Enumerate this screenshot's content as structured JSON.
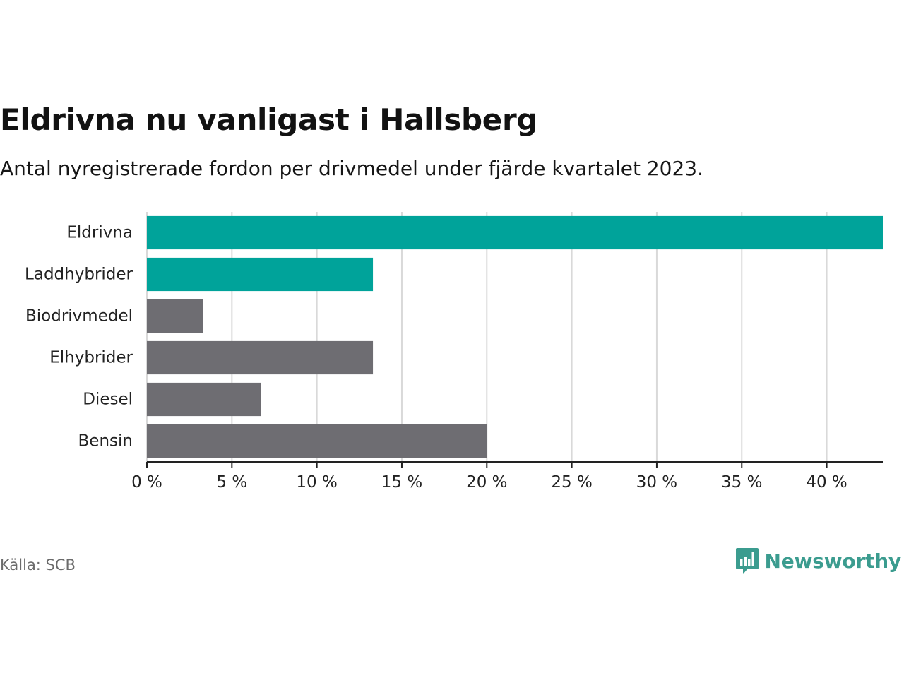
{
  "header": {
    "title": "Eldrivna nu vanligast i Hallsberg",
    "subtitle": "Antal nyregistrerade fordon per drivmedel under fjärde kvartalet 2023."
  },
  "footer": {
    "source": "Källa: SCB",
    "brand": "Newsworthy",
    "brand_icon": "bar-chart-speech-bubble-icon"
  },
  "colors": {
    "highlight": "#00a39a",
    "default": "#6e6d72",
    "brand": "#3b9c8f",
    "grid": "#d9d9d9",
    "axis": "#222222"
  },
  "chart_data": {
    "type": "bar",
    "orientation": "horizontal",
    "title": "Eldrivna nu vanligast i Hallsberg",
    "subtitle": "Antal nyregistrerade fordon per drivmedel under fjärde kvartalet 2023.",
    "xlabel": "",
    "ylabel": "",
    "categories": [
      "Eldrivna",
      "Laddhybrider",
      "Biodrivmedel",
      "Elhybrider",
      "Diesel",
      "Bensin"
    ],
    "values": [
      43.3,
      13.3,
      3.3,
      13.3,
      6.7,
      20.0
    ],
    "highlighted": [
      true,
      true,
      false,
      false,
      false,
      false
    ],
    "xlim": [
      0,
      43.3
    ],
    "ticks": [
      0,
      5,
      10,
      15,
      20,
      25,
      30,
      35,
      40
    ],
    "tick_labels": [
      "0 %",
      "5 %",
      "10 %",
      "15 %",
      "20 %",
      "25 %",
      "30 %",
      "35 %",
      "40 %"
    ],
    "grid": true,
    "legend": "none"
  }
}
